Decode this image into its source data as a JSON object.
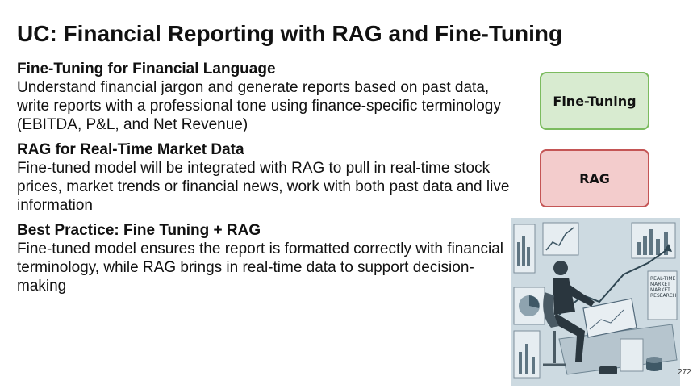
{
  "title": "UC: Financial Reporting with RAG and Fine-Tuning",
  "sections": [
    {
      "heading": "Fine-Tuning for Financial Language",
      "body": "Understand financial jargon and generate reports based on past data, write reports with a professional tone using finance-specific terminology (EBITDA, P&L, and Net Revenue)"
    },
    {
      "heading": "RAG for Real-Time Market Data",
      "body": "Fine-tuned model will be integrated with RAG to pull in real-time stock prices, market trends or financial news, work with both past data and live information"
    },
    {
      "heading": "Best Practice: Fine Tuning + RAG",
      "body": "Fine-tuned model ensures the report is formatted correctly with financial terminology, while RAG brings in real-time data to support decision-making"
    }
  ],
  "boxes": {
    "fine_tuning": "Fine-Tuning",
    "rag": "RAG"
  },
  "illustration": {
    "caption_lines": [
      "REAL-TIME",
      "MARKET",
      "MARKET",
      "RESEARCH"
    ]
  },
  "page_number": "272",
  "colors": {
    "fine_tuning_fill": "#d8ebd0",
    "fine_tuning_border": "#7cbb5f",
    "rag_fill": "#f3cccc",
    "rag_border": "#c45555"
  }
}
